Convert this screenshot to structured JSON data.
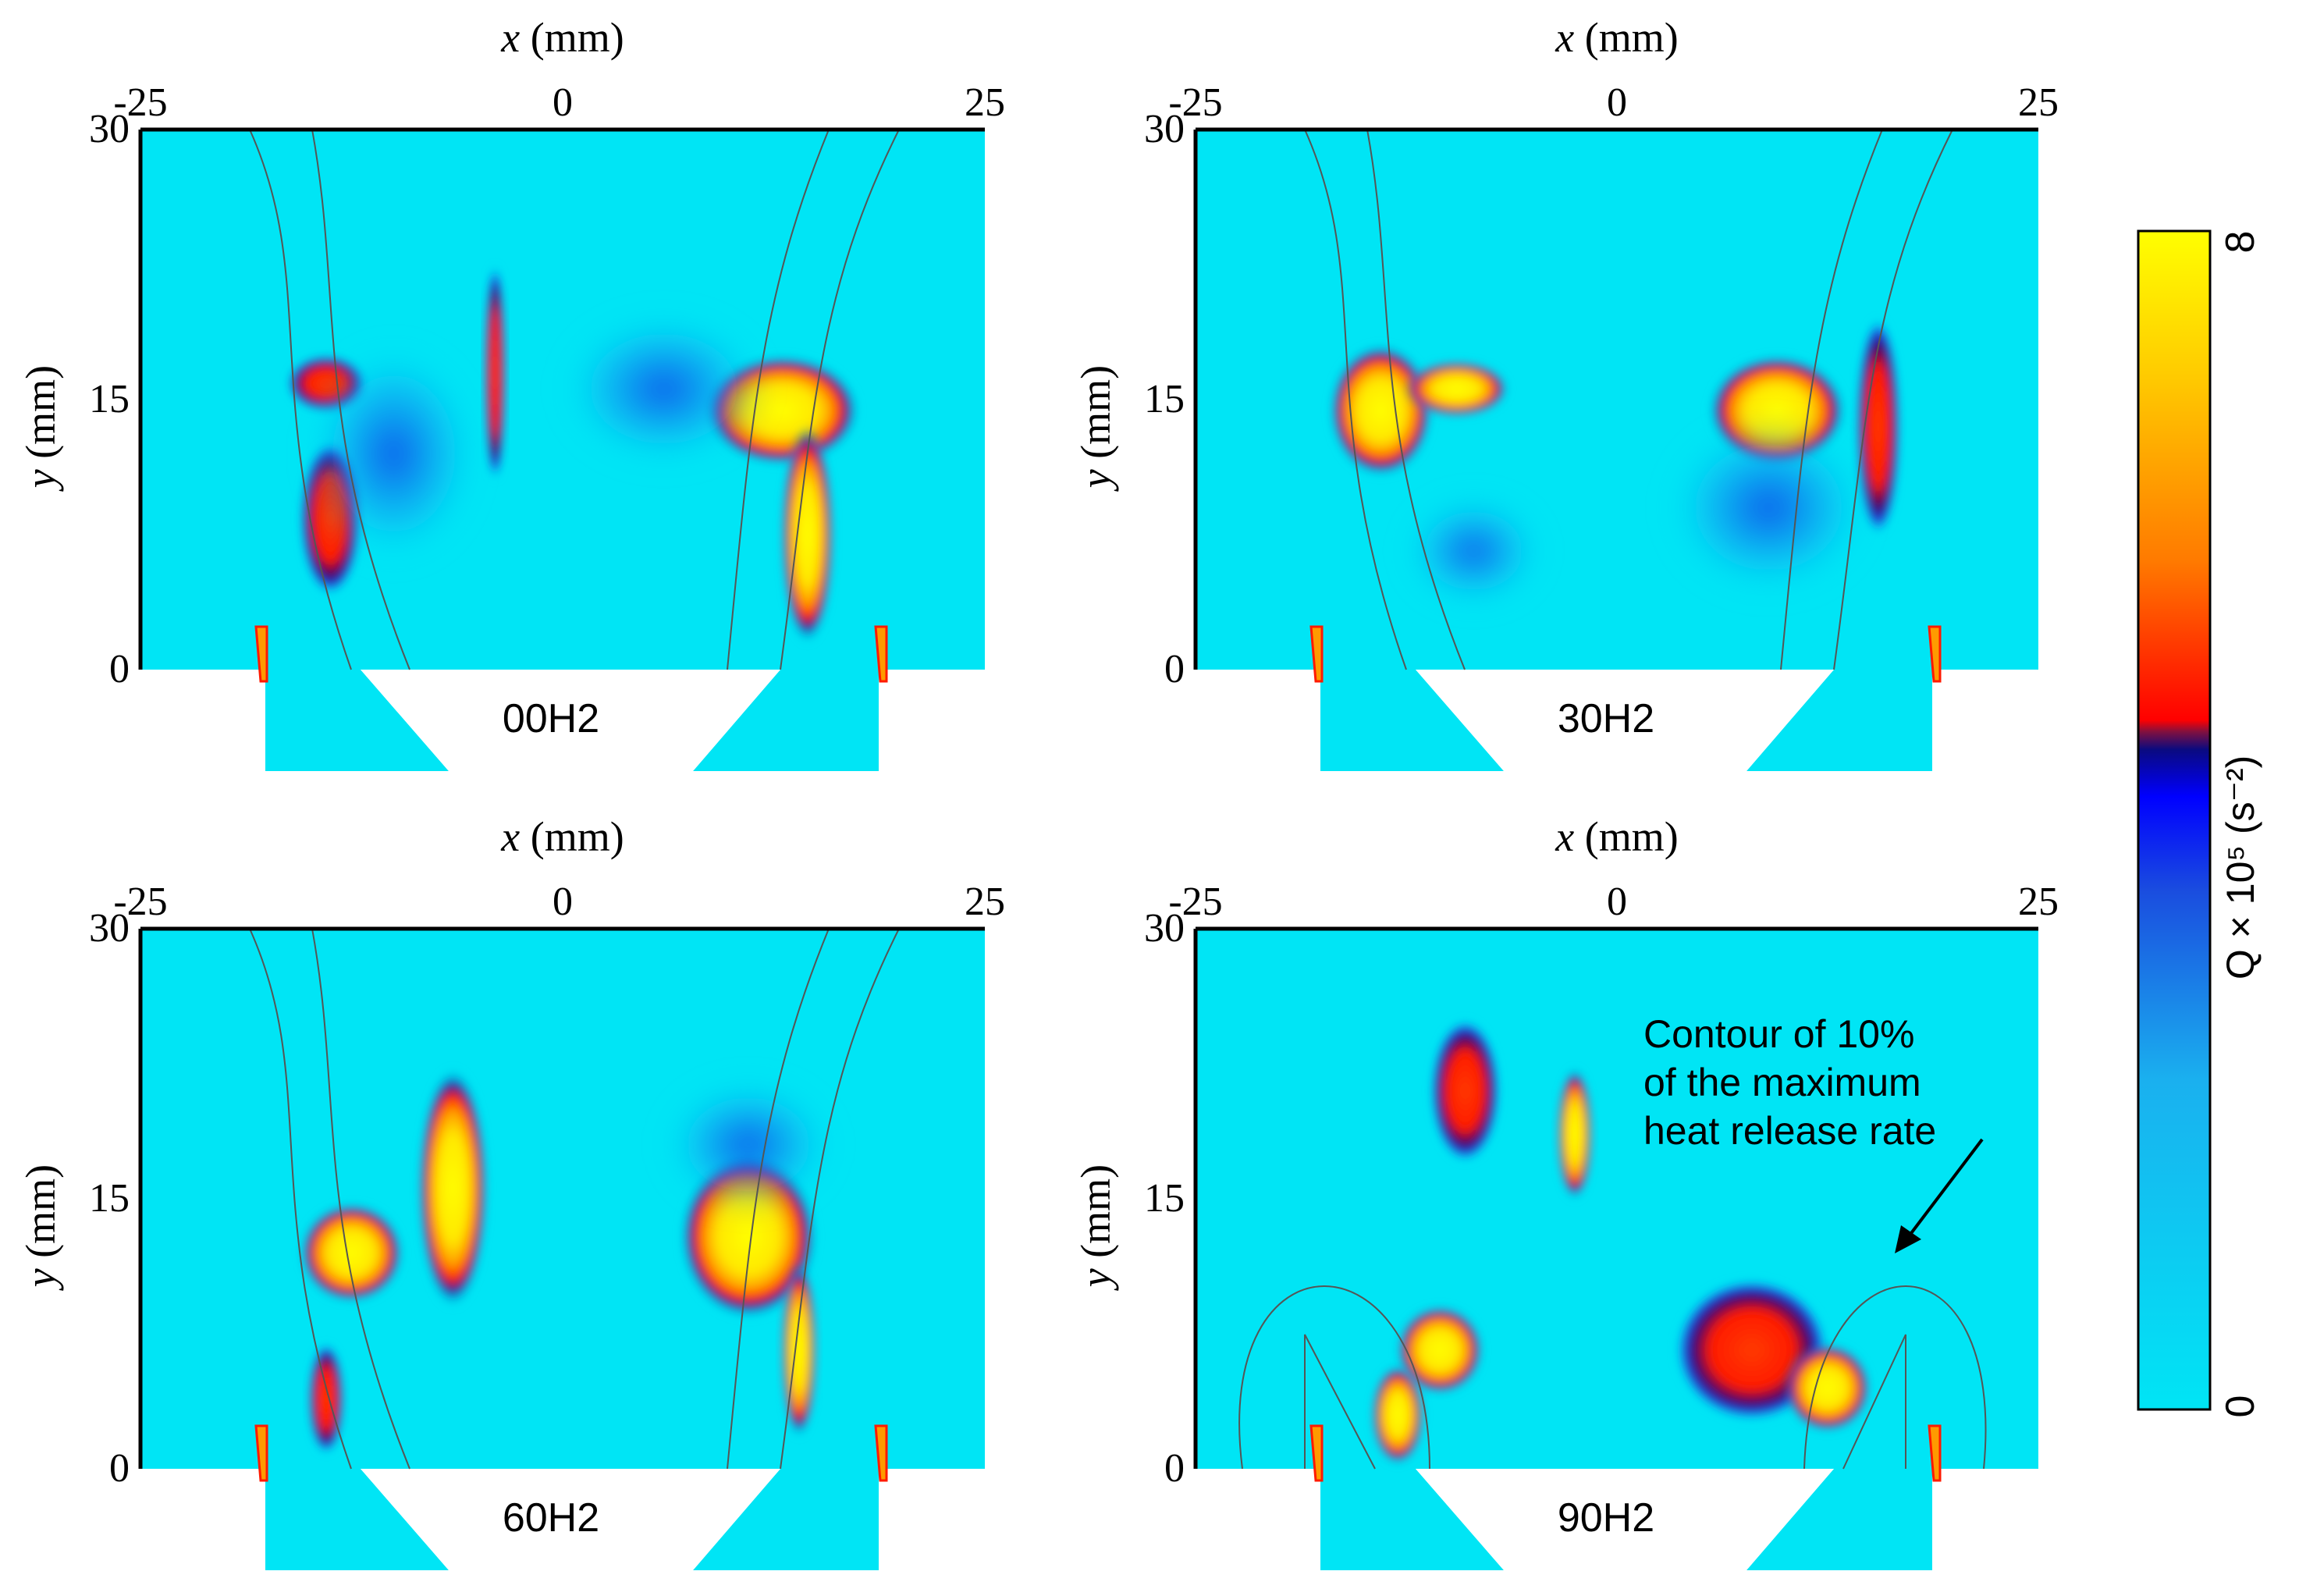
{
  "chart_data": {
    "type": "heatmap",
    "panels": [
      {
        "label": "00H2",
        "xlabel_var": "x",
        "xlabel_unit": " (mm)",
        "ylabel_var": "y",
        "ylabel_unit": " (mm)",
        "xticks": [
          "-25",
          "0",
          "25"
        ],
        "yticks": [
          "0",
          "15",
          "30"
        ],
        "xlim": [
          -25,
          25
        ],
        "ylim": [
          0,
          30
        ]
      },
      {
        "label": "30H2",
        "xlabel_var": "x",
        "xlabel_unit": " (mm)",
        "ylabel_var": "y",
        "ylabel_unit": " (mm)",
        "xticks": [
          "-25",
          "0",
          "25"
        ],
        "yticks": [
          "0",
          "15",
          "30"
        ],
        "xlim": [
          -25,
          25
        ],
        "ylim": [
          0,
          30
        ]
      },
      {
        "label": "60H2",
        "xlabel_var": "x",
        "xlabel_unit": " (mm)",
        "ylabel_var": "y",
        "ylabel_unit": " (mm)",
        "xticks": [
          "-25",
          "0",
          "25"
        ],
        "yticks": [
          "0",
          "15",
          "30"
        ],
        "xlim": [
          -25,
          25
        ],
        "ylim": [
          0,
          30
        ]
      },
      {
        "label": "90H2",
        "xlabel_var": "x",
        "xlabel_unit": " (mm)",
        "ylabel_var": "y",
        "ylabel_unit": " (mm)",
        "xticks": [
          "-25",
          "0",
          "25"
        ],
        "yticks": [
          "0",
          "15",
          "30"
        ],
        "xlim": [
          -25,
          25
        ],
        "ylim": [
          0,
          30
        ]
      }
    ],
    "colorbar": {
      "label": "Q × 10⁵ (s⁻²)",
      "min_label": "0",
      "max_label": "8",
      "range": [
        0,
        8
      ],
      "colors": [
        "#00e5f5",
        "#1ab0ef",
        "#1a4ddf",
        "#0000ff",
        "#0a0a80",
        "#801040",
        "#ff0000",
        "#ff7a00",
        "#ffcc00",
        "#ffff00"
      ]
    },
    "annotation": {
      "lines": [
        "Contour of 10%",
        "of the maximum",
        "heat release rate"
      ],
      "panel": "90H2"
    }
  }
}
